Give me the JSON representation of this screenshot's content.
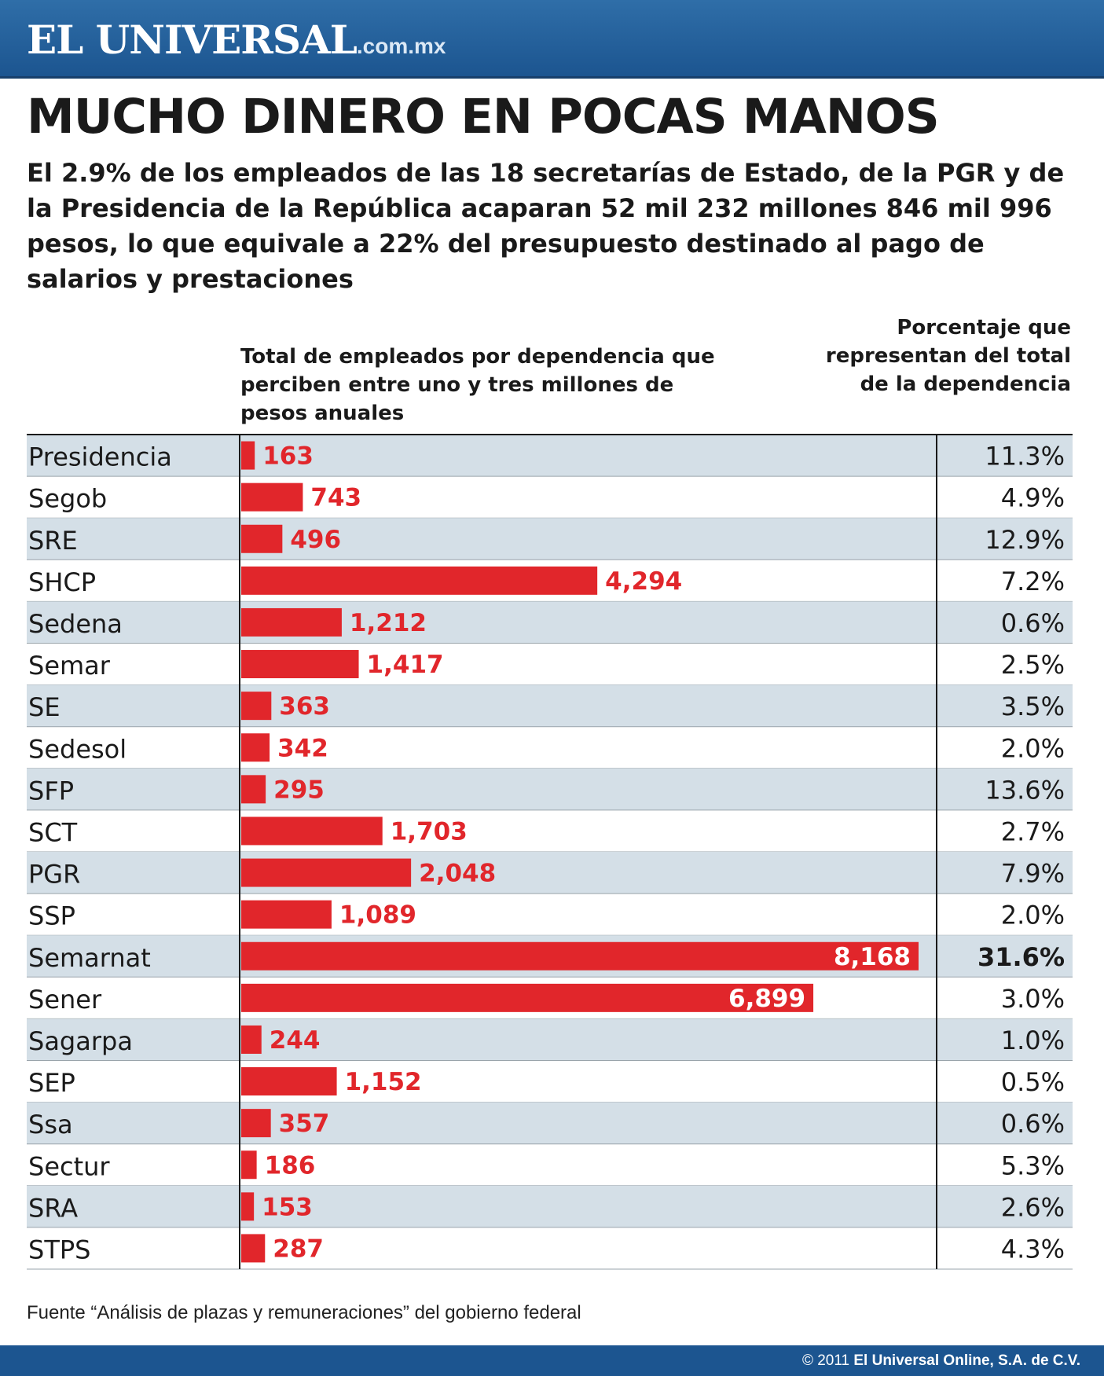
{
  "header": {
    "logo_main": "EL UNIVERSAL",
    "logo_suffix": ".com.mx"
  },
  "title": "MUCHO DINERO EN POCAS MANOS",
  "subtitle": "El 2.9% de los empleados de las 18 secretarías de Estado, de la PGR y de la Presidencia de la República acaparan 52 mil 232 millones 846 mil 996 pesos, lo que equivale a 22% del presupuesto destinado al pago de salarios y prestaciones",
  "columns": {
    "left_header": "Total de empleados por dependencia que perciben entre uno y tres millones de pesos anuales",
    "right_header": "Porcentaje que representan del total de la dependencia"
  },
  "source": "Fuente “Análisis de plazas y remuneraciones” del gobierno federal",
  "footer": {
    "copyright_prefix": "© 2011 ",
    "copyright_owner": "El Universal Online, S.A. de C.V."
  },
  "colors": {
    "bar": "#e1262b",
    "row_shade": "#d4dfe7",
    "header_blue": "#1c5590"
  },
  "chart_data": {
    "type": "bar",
    "orientation": "horizontal",
    "categories": [
      "Presidencia",
      "Segob",
      "SRE",
      "SHCP",
      "Sedena",
      "Semar",
      "SE",
      "Sedesol",
      "SFP",
      "SCT",
      "PGR",
      "SSP",
      "Semarnat",
      "Sener",
      "Sagarpa",
      "SEP",
      "Ssa",
      "Sectur",
      "SRA",
      "STPS"
    ],
    "values": [
      163,
      743,
      496,
      4294,
      1212,
      1417,
      363,
      342,
      295,
      1703,
      2048,
      1089,
      8168,
      6899,
      244,
      1152,
      357,
      186,
      153,
      287
    ],
    "value_labels": [
      "163",
      "743",
      "496",
      "4,294",
      "1,212",
      "1,417",
      "363",
      "342",
      "295",
      "1,703",
      "2,048",
      "1,089",
      "8,168",
      "6,899",
      "244",
      "1,152",
      "357",
      "186",
      "153",
      "287"
    ],
    "percentages": [
      "11.3%",
      "4.9%",
      "12.9%",
      "7.2%",
      "0.6%",
      "2.5%",
      "3.5%",
      "2.0%",
      "13.6%",
      "2.7%",
      "7.9%",
      "2.0%",
      "31.6%",
      "3.0%",
      "1.0%",
      "0.5%",
      "0.6%",
      "5.3%",
      "2.6%",
      "4.3%"
    ],
    "highlight": "Semarnat",
    "xlim": [
      0,
      8168
    ],
    "grid": false,
    "legend": "none"
  }
}
